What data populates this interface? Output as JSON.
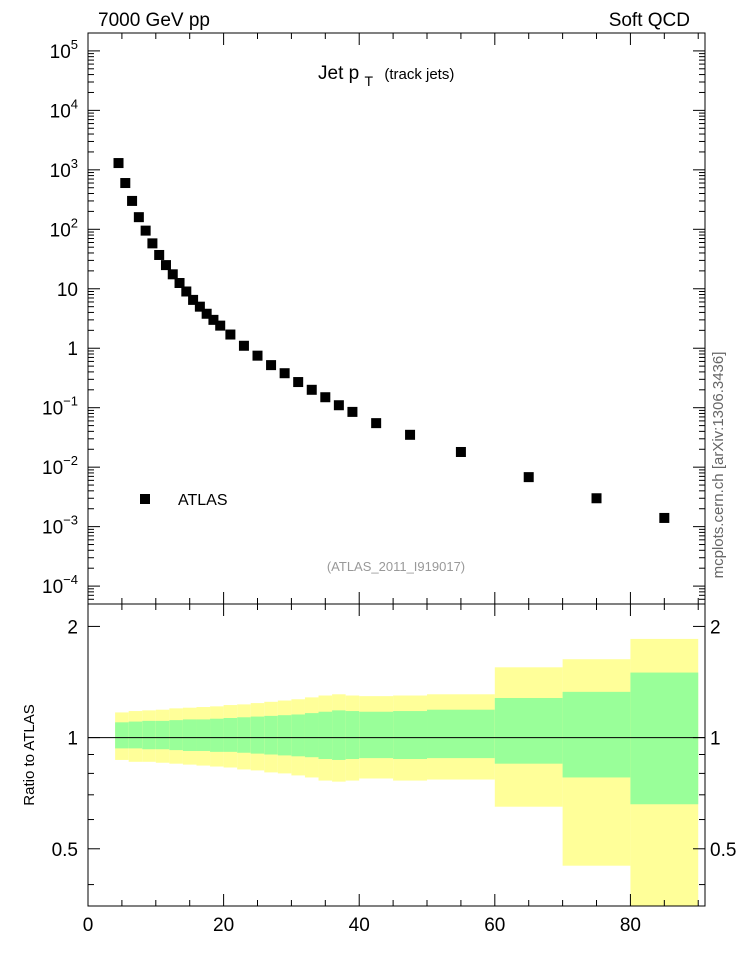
{
  "header": {
    "left": "7000 GeV pp",
    "right": "Soft QCD"
  },
  "side_label": "mcplots.cern.ch [arXiv:1306.3436]",
  "colors": {
    "band_outer": "#ffff99",
    "band_inner": "#99ff99",
    "marker": "#000000",
    "analysis_label": "#999999"
  },
  "chart_data": [
    {
      "type": "scatter",
      "title": {
        "main": "Jet p",
        "sub": "T",
        "suffix": "(track jets)"
      },
      "yscale": "log",
      "ylim": [
        5e-05,
        200000
      ],
      "xlim": [
        0,
        91
      ],
      "y_ticks": [
        {
          "value": 100000,
          "base": "10",
          "exp": "5"
        },
        {
          "value": 10000,
          "base": "10",
          "exp": "4"
        },
        {
          "value": 1000,
          "base": "10",
          "exp": "3"
        },
        {
          "value": 100,
          "base": "10",
          "exp": "2"
        },
        {
          "value": 10,
          "base": "10",
          "exp": ""
        },
        {
          "value": 1,
          "base": "1",
          "exp": ""
        },
        {
          "value": 0.1,
          "base": "10",
          "exp": "−1"
        },
        {
          "value": 0.01,
          "base": "10",
          "exp": "−2"
        },
        {
          "value": 0.001,
          "base": "10",
          "exp": "−3"
        },
        {
          "value": 0.0001,
          "base": "10",
          "exp": "−4"
        }
      ],
      "series": [
        {
          "name": "ATLAS",
          "x": [
            4.5,
            5.5,
            6.5,
            7.5,
            8.5,
            9.5,
            10.5,
            11.5,
            12.5,
            13.5,
            14.5,
            15.5,
            16.5,
            17.5,
            18.5,
            19.5,
            21,
            23,
            25,
            27,
            29,
            31,
            33,
            35,
            37,
            39,
            42.5,
            47.5,
            55,
            65,
            75,
            85
          ],
          "y": [
            1300,
            600,
            300,
            160,
            95,
            58,
            37,
            25,
            17.5,
            12.5,
            9,
            6.5,
            5,
            3.8,
            3,
            2.4,
            1.7,
            1.1,
            0.75,
            0.52,
            0.38,
            0.27,
            0.2,
            0.15,
            0.11,
            0.085,
            0.055,
            0.035,
            0.018,
            0.0068,
            0.003,
            0.0014
          ]
        }
      ],
      "legend": {
        "label": "ATLAS",
        "position": "lower-left"
      },
      "analysis_label": "(ATLAS_2011_I919017)"
    },
    {
      "type": "area",
      "ylabel": "Ratio to ATLAS",
      "ylim": [
        0.35,
        2.3
      ],
      "xlim": [
        0,
        91
      ],
      "y_tick_labels": [
        "0.5",
        "1",
        "2"
      ],
      "y_ticks": [
        0.5,
        1,
        2
      ],
      "x_tick_labels": [
        "0",
        "20",
        "40",
        "60",
        "80"
      ],
      "x_ticks": [
        0,
        20,
        40,
        60,
        80
      ],
      "reference_line": 1,
      "bins": [
        {
          "x0": 4,
          "x1": 6,
          "inner": [
            0.935,
            1.1
          ],
          "outer": [
            0.87,
            1.17
          ]
        },
        {
          "x0": 6,
          "x1": 8,
          "inner": [
            0.935,
            1.105
          ],
          "outer": [
            0.86,
            1.18
          ]
        },
        {
          "x0": 8,
          "x1": 10,
          "inner": [
            0.93,
            1.11
          ],
          "outer": [
            0.86,
            1.185
          ]
        },
        {
          "x0": 10,
          "x1": 12,
          "inner": [
            0.93,
            1.11
          ],
          "outer": [
            0.855,
            1.19
          ]
        },
        {
          "x0": 12,
          "x1": 14,
          "inner": [
            0.925,
            1.115
          ],
          "outer": [
            0.85,
            1.2
          ]
        },
        {
          "x0": 14,
          "x1": 16,
          "inner": [
            0.92,
            1.12
          ],
          "outer": [
            0.845,
            1.205
          ]
        },
        {
          "x0": 16,
          "x1": 18,
          "inner": [
            0.92,
            1.12
          ],
          "outer": [
            0.84,
            1.21
          ]
        },
        {
          "x0": 18,
          "x1": 20,
          "inner": [
            0.915,
            1.125
          ],
          "outer": [
            0.835,
            1.215
          ]
        },
        {
          "x0": 20,
          "x1": 22,
          "inner": [
            0.915,
            1.13
          ],
          "outer": [
            0.83,
            1.225
          ]
        },
        {
          "x0": 22,
          "x1": 24,
          "inner": [
            0.91,
            1.135
          ],
          "outer": [
            0.82,
            1.23
          ]
        },
        {
          "x0": 24,
          "x1": 26,
          "inner": [
            0.905,
            1.14
          ],
          "outer": [
            0.815,
            1.24
          ]
        },
        {
          "x0": 26,
          "x1": 28,
          "inner": [
            0.9,
            1.145
          ],
          "outer": [
            0.805,
            1.25
          ]
        },
        {
          "x0": 28,
          "x1": 30,
          "inner": [
            0.895,
            1.15
          ],
          "outer": [
            0.8,
            1.26
          ]
        },
        {
          "x0": 30,
          "x1": 32,
          "inner": [
            0.89,
            1.155
          ],
          "outer": [
            0.79,
            1.27
          ]
        },
        {
          "x0": 32,
          "x1": 34,
          "inner": [
            0.885,
            1.165
          ],
          "outer": [
            0.78,
            1.285
          ]
        },
        {
          "x0": 34,
          "x1": 36,
          "inner": [
            0.875,
            1.175
          ],
          "outer": [
            0.765,
            1.3
          ]
        },
        {
          "x0": 36,
          "x1": 38,
          "inner": [
            0.87,
            1.185
          ],
          "outer": [
            0.76,
            1.31
          ]
        },
        {
          "x0": 38,
          "x1": 40,
          "inner": [
            0.875,
            1.18
          ],
          "outer": [
            0.765,
            1.3
          ]
        },
        {
          "x0": 40,
          "x1": 45,
          "inner": [
            0.88,
            1.175
          ],
          "outer": [
            0.775,
            1.295
          ]
        },
        {
          "x0": 45,
          "x1": 50,
          "inner": [
            0.875,
            1.18
          ],
          "outer": [
            0.765,
            1.3
          ]
        },
        {
          "x0": 50,
          "x1": 60,
          "inner": [
            0.88,
            1.19
          ],
          "outer": [
            0.77,
            1.31
          ]
        },
        {
          "x0": 60,
          "x1": 70,
          "inner": [
            0.85,
            1.28
          ],
          "outer": [
            0.65,
            1.55
          ]
        },
        {
          "x0": 70,
          "x1": 80,
          "inner": [
            0.78,
            1.33
          ],
          "outer": [
            0.45,
            1.63
          ]
        },
        {
          "x0": 80,
          "x1": 90,
          "inner": [
            0.66,
            1.5
          ],
          "outer": [
            0.33,
            1.85
          ]
        }
      ]
    }
  ]
}
